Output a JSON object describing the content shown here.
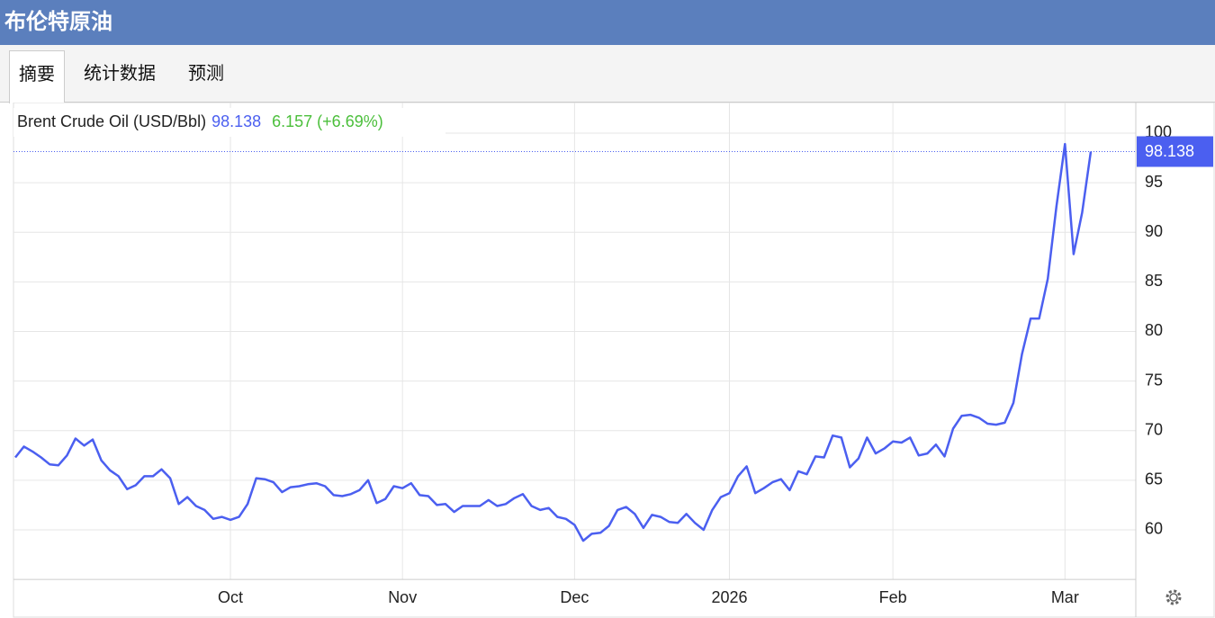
{
  "header": {
    "title": "布伦特原油"
  },
  "tabs": [
    "摘要",
    "统计数据",
    "预测"
  ],
  "chart_data": {
    "type": "line",
    "categories": [
      null,
      null,
      null,
      null,
      null,
      null,
      null,
      null,
      null,
      null,
      null,
      null,
      null,
      null,
      null,
      null,
      null,
      null,
      null,
      null,
      null,
      null,
      null,
      null,
      null,
      "Oct",
      null,
      null,
      null,
      null,
      null,
      null,
      null,
      null,
      null,
      null,
      null,
      null,
      null,
      null,
      null,
      null,
      null,
      null,
      null,
      "Nov",
      null,
      null,
      null,
      null,
      null,
      null,
      null,
      null,
      null,
      null,
      null,
      null,
      null,
      null,
      null,
      null,
      null,
      null,
      null,
      "Dec",
      null,
      null,
      null,
      null,
      null,
      null,
      null,
      null,
      null,
      null,
      null,
      null,
      null,
      null,
      null,
      null,
      null,
      "2026",
      null,
      null,
      null,
      null,
      null,
      null,
      null,
      null,
      null,
      null,
      null,
      null,
      null,
      null,
      null,
      null,
      null,
      null,
      "Feb",
      null,
      null,
      null,
      null,
      null,
      null,
      null,
      null,
      null,
      null,
      null,
      null,
      null,
      null,
      null,
      null,
      null,
      null,
      null,
      "Mar",
      null,
      null,
      null
    ],
    "series": [
      {
        "name": "Brent Crude Oil (USD/Bbl)",
        "color": "#4b5ff0",
        "values": [
          67.3,
          68.4,
          67.9,
          67.3,
          66.6,
          66.5,
          67.5,
          69.2,
          68.5,
          69.1,
          67.0,
          66.0,
          65.4,
          64.1,
          64.5,
          65.4,
          65.4,
          66.1,
          65.2,
          62.6,
          63.3,
          62.4,
          62.0,
          61.1,
          61.3,
          61.0,
          61.3,
          62.6,
          65.2,
          65.1,
          64.8,
          63.8,
          64.3,
          64.4,
          64.6,
          64.7,
          64.4,
          63.5,
          63.4,
          63.6,
          64.0,
          65.0,
          62.7,
          63.1,
          64.4,
          64.2,
          64.7,
          63.5,
          63.4,
          62.5,
          62.6,
          61.8,
          62.4,
          62.4,
          62.4,
          63.0,
          62.4,
          62.6,
          63.2,
          63.6,
          62.4,
          62.0,
          62.2,
          61.3,
          61.1,
          60.5,
          58.9,
          59.6,
          59.7,
          60.4,
          62.0,
          62.3,
          61.6,
          60.2,
          61.5,
          61.3,
          60.8,
          60.7,
          61.6,
          60.7,
          60.0,
          62.0,
          63.3,
          63.7,
          65.4,
          66.4,
          63.7,
          64.2,
          64.8,
          65.1,
          64.0,
          65.9,
          65.6,
          67.4,
          67.3,
          69.5,
          69.3,
          66.3,
          67.2,
          69.3,
          67.7,
          68.2,
          68.9,
          68.8,
          69.3,
          67.5,
          67.7,
          68.6,
          67.4,
          70.2,
          71.5,
          71.6,
          71.3,
          70.7,
          70.6,
          70.8,
          72.8,
          77.7,
          81.3,
          81.3,
          85.3,
          92.6,
          98.9,
          87.8,
          92.0,
          98.138
        ]
      }
    ],
    "annotations": [
      "6.157 (+6.69%)"
    ],
    "ylim": [
      55,
      102.5
    ],
    "yticks": [
      60,
      65,
      70,
      75,
      80,
      85,
      90,
      95,
      100
    ],
    "grid": true,
    "legend": "top-left"
  }
}
